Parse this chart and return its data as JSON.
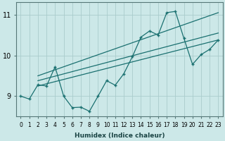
{
  "xlabel": "Humidex (Indice chaleur)",
  "ylabel": "",
  "bg_color": "#cce8e8",
  "grid_color": "#aacccc",
  "line_color": "#1a7070",
  "xlim": [
    -0.5,
    23.5
  ],
  "ylim": [
    8.5,
    11.3
  ],
  "yticks": [
    9,
    10,
    11
  ],
  "xticks": [
    0,
    1,
    2,
    3,
    4,
    5,
    6,
    7,
    8,
    9,
    10,
    11,
    12,
    13,
    14,
    15,
    16,
    17,
    18,
    19,
    20,
    21,
    22,
    23
  ],
  "data_x": [
    0,
    1,
    2,
    3,
    4,
    5,
    6,
    7,
    8,
    9,
    10,
    11,
    12,
    13,
    14,
    15,
    16,
    17,
    18,
    19,
    20,
    21,
    22,
    23
  ],
  "data_y": [
    9.0,
    8.93,
    9.28,
    9.25,
    9.72,
    9.0,
    8.72,
    8.73,
    8.63,
    9.0,
    9.38,
    9.27,
    9.55,
    9.97,
    10.45,
    10.6,
    10.5,
    11.05,
    11.08,
    10.42,
    9.78,
    10.02,
    10.15,
    10.38
  ],
  "trend1_x": [
    2,
    23
  ],
  "trend1_y": [
    9.25,
    10.38
  ],
  "trend2_x": [
    2,
    23
  ],
  "trend2_y": [
    9.38,
    10.55
  ],
  "trend3_x": [
    2,
    23
  ],
  "trend3_y": [
    9.5,
    11.05
  ]
}
